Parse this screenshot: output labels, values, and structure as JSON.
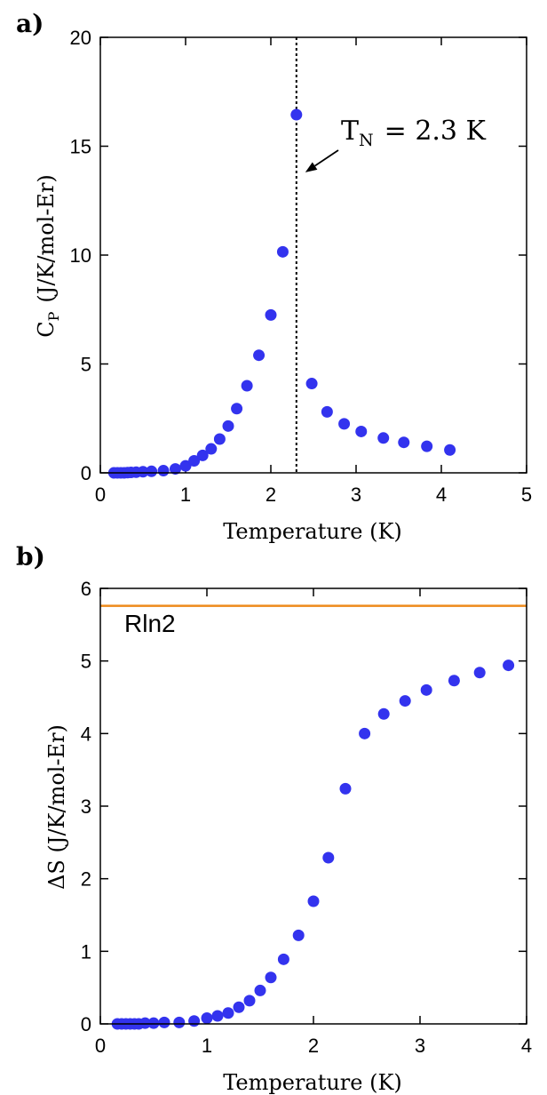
{
  "chart_data": [
    {
      "panel_label": "a)",
      "type": "scatter",
      "xlabel": "Temperature (K)",
      "ylabel": "C",
      "ylabel_subscript": "P",
      "ylabel_units": "(J/K/mol-Er)",
      "xlim": [
        0,
        5
      ],
      "ylim": [
        0,
        20
      ],
      "xticks": [
        "0",
        "1",
        "2",
        "3",
        "4",
        "5"
      ],
      "yticks": [
        "0",
        "5",
        "10",
        "15",
        "20"
      ],
      "grid": false,
      "marker_color": "#3333ee",
      "series": [
        {
          "x": [
            0.16,
            0.2,
            0.24,
            0.28,
            0.32,
            0.36,
            0.42,
            0.5,
            0.6,
            0.74,
            0.88,
            1.0,
            1.1,
            1.2,
            1.3,
            1.4,
            1.5,
            1.6,
            1.72,
            1.86,
            2.0,
            2.14,
            2.3,
            2.48,
            2.66,
            2.86,
            3.06,
            3.32,
            3.56,
            3.83,
            4.1
          ],
          "y": [
            0.0,
            0.0,
            0.0,
            0.0,
            0.01,
            0.02,
            0.03,
            0.05,
            0.07,
            0.1,
            0.18,
            0.32,
            0.55,
            0.8,
            1.1,
            1.55,
            2.15,
            2.95,
            4.0,
            5.4,
            7.25,
            10.15,
            16.45,
            4.1,
            2.8,
            2.25,
            1.9,
            1.6,
            1.4,
            1.22,
            1.05
          ]
        }
      ],
      "vline": {
        "x": 2.3,
        "style": "dotted"
      },
      "annotation": {
        "text_main": "T",
        "text_sub": "N",
        "text_rest": "= 2.3 K",
        "arrow_to": [
          2.3,
          13.8
        ]
      }
    },
    {
      "panel_label": "b)",
      "type": "scatter",
      "xlabel": "Temperature (K)",
      "ylabel": "ΔS (J/K/mol-Er)",
      "xlim": [
        0,
        4
      ],
      "ylim": [
        0,
        6
      ],
      "xticks": [
        "0",
        "1",
        "2",
        "3",
        "4"
      ],
      "yticks": [
        "0",
        "1",
        "2",
        "3",
        "4",
        "5",
        "6"
      ],
      "grid": false,
      "marker_color": "#3333ee",
      "series": [
        {
          "x": [
            0.16,
            0.2,
            0.24,
            0.28,
            0.32,
            0.36,
            0.42,
            0.5,
            0.6,
            0.74,
            0.88,
            1.0,
            1.1,
            1.2,
            1.3,
            1.4,
            1.5,
            1.6,
            1.72,
            1.86,
            2.0,
            2.14,
            2.3,
            2.48,
            2.66,
            2.86,
            3.06,
            3.32,
            3.56,
            3.83
          ],
          "y": [
            0.0,
            0.0,
            0.0,
            0.0,
            0.0,
            0.0,
            0.01,
            0.01,
            0.02,
            0.02,
            0.04,
            0.08,
            0.11,
            0.15,
            0.23,
            0.32,
            0.46,
            0.64,
            0.89,
            1.22,
            1.69,
            2.29,
            3.24,
            4.0,
            4.27,
            4.45,
            4.6,
            4.73,
            4.84,
            4.94
          ]
        }
      ],
      "hline": {
        "y": 5.76,
        "label": "Rln2",
        "color": "#ee8a1a"
      }
    }
  ]
}
